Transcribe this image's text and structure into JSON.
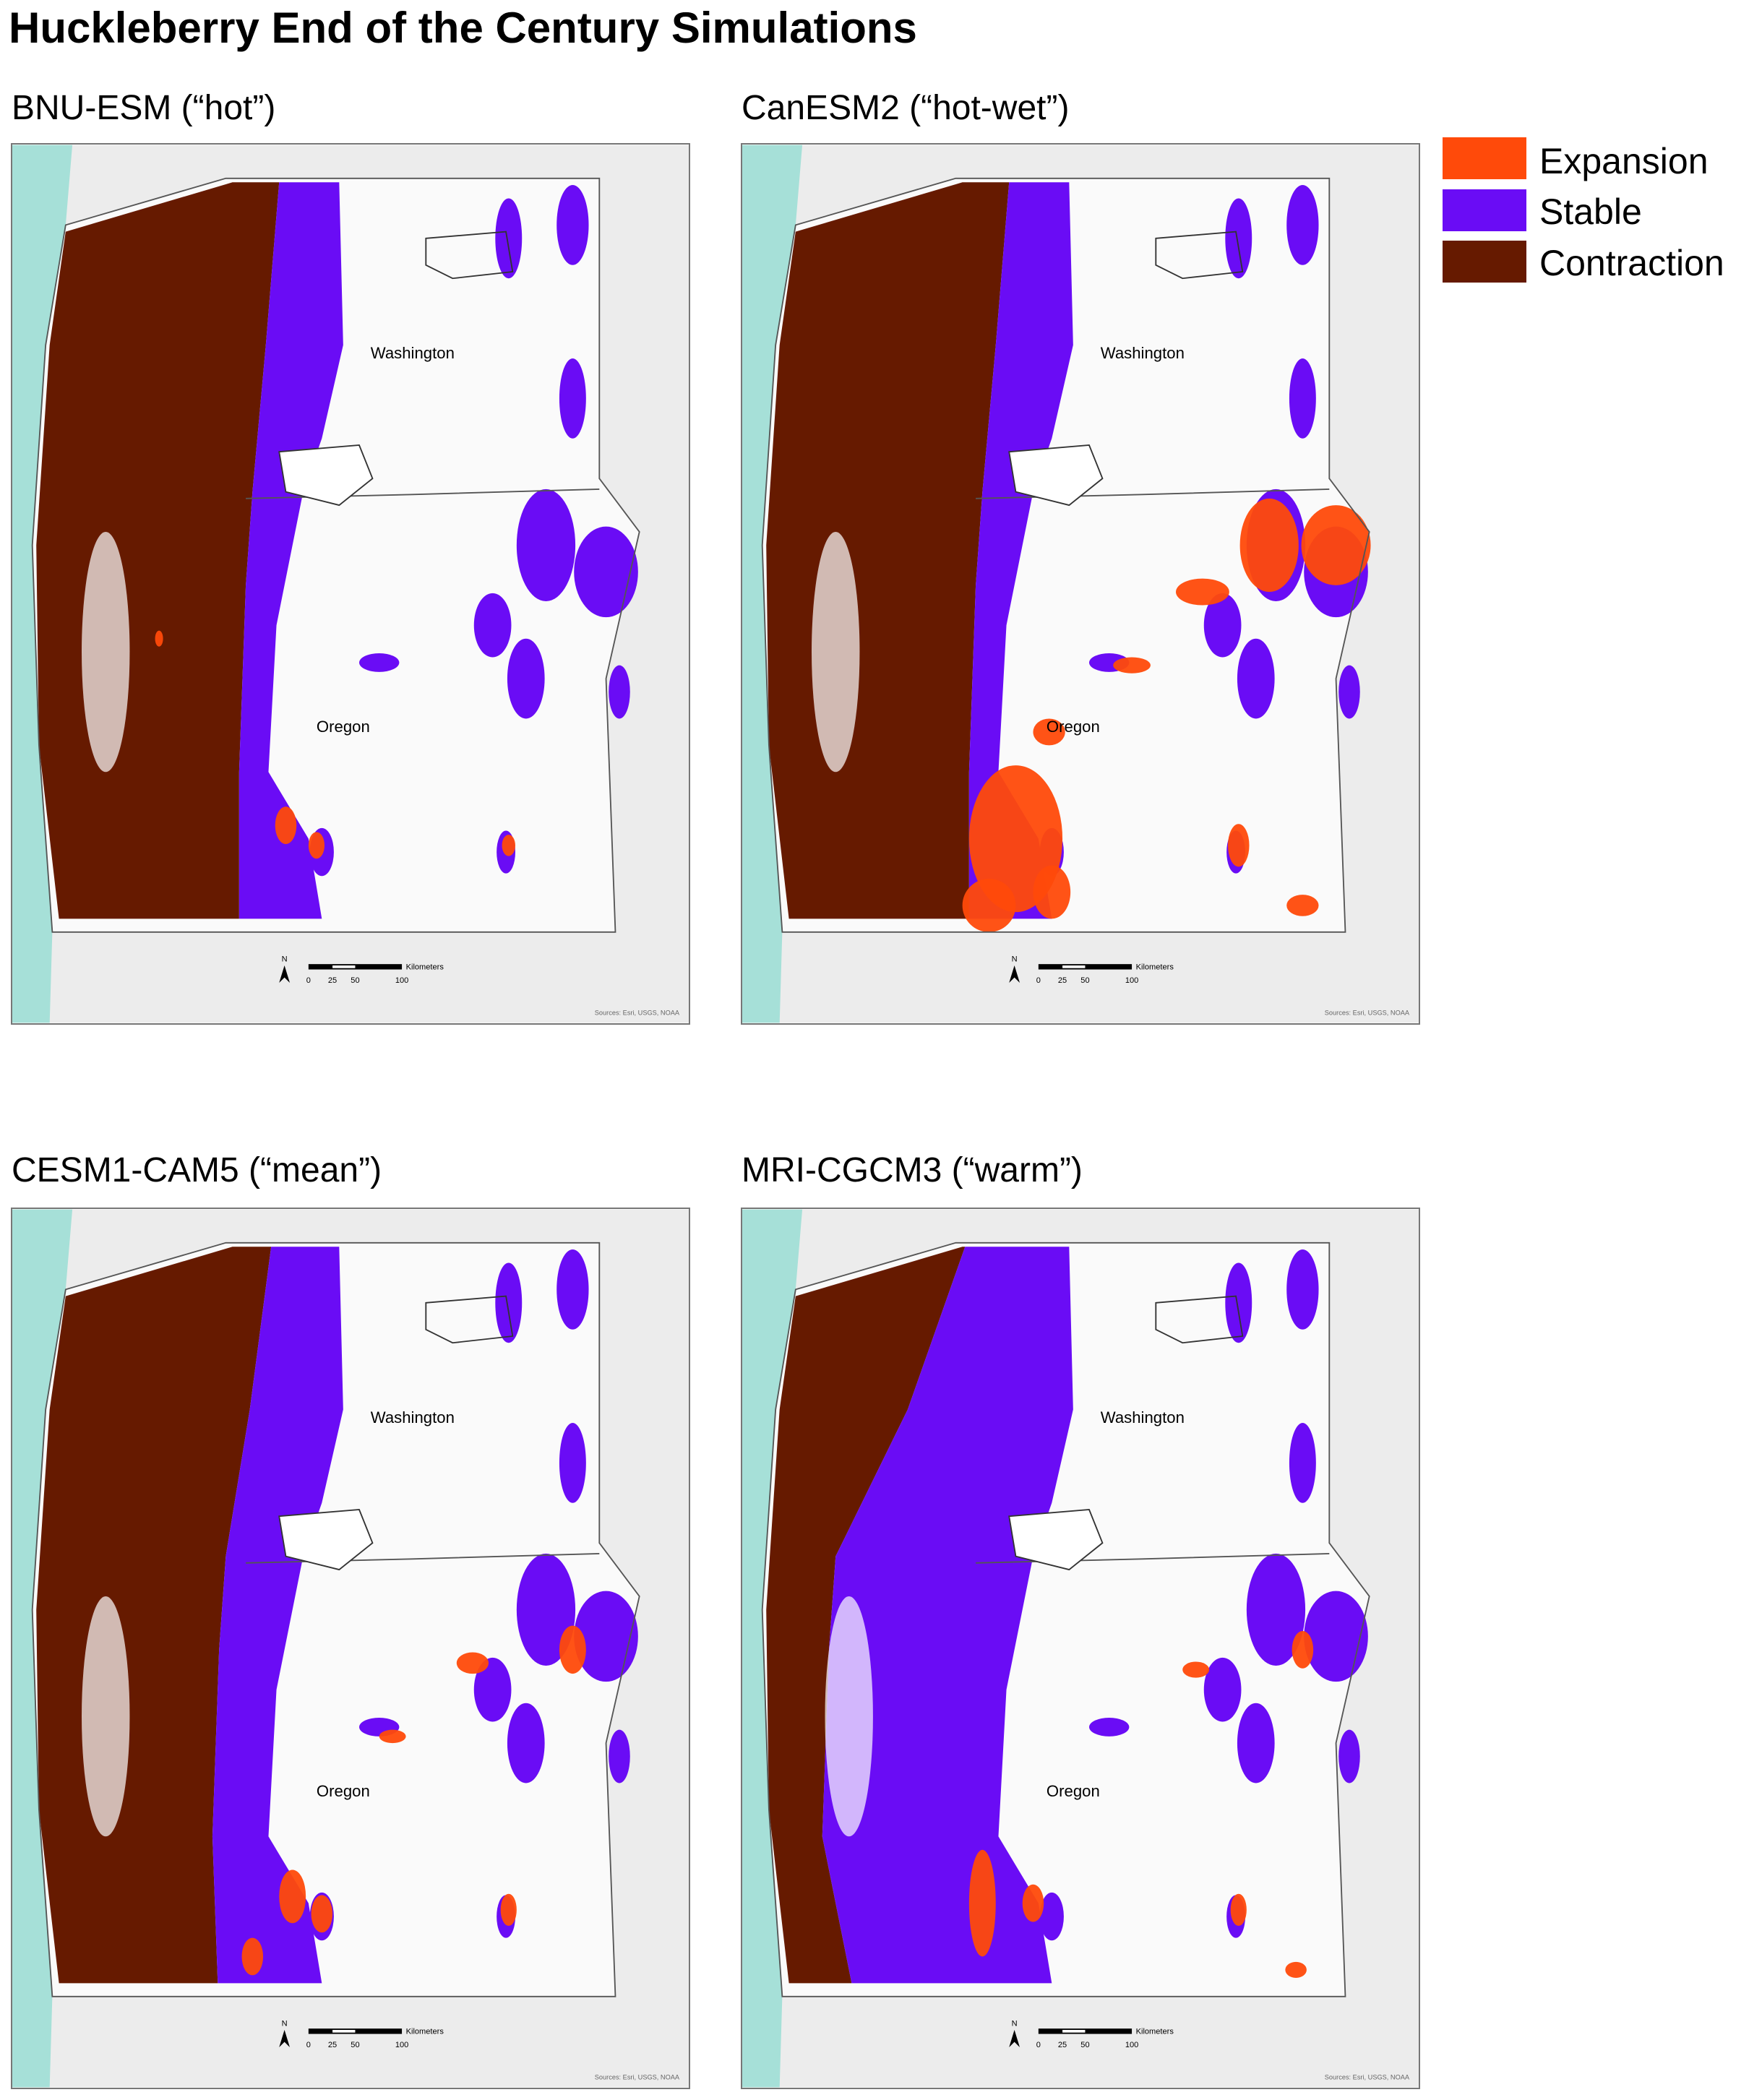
{
  "title": "Huckleberry End of the Century Simulations",
  "legend": [
    {
      "label": "Expansion",
      "color": "#ff4a0a"
    },
    {
      "label": "Stable",
      "color": "#6a0cf5"
    },
    {
      "label": "Contraction",
      "color": "#661a00"
    }
  ],
  "panels": [
    {
      "title": "BNU-ESM (“hot”)"
    },
    {
      "title": "CanESM2 (“hot-wet”)"
    },
    {
      "title": "CESM1-CAM5 (“mean”)"
    },
    {
      "title": "MRI-CGCM3 (“warm”)"
    }
  ],
  "map_labels": {
    "washington": "Washington",
    "oregon": "Oregon",
    "north": "N",
    "scale_unit": "Kilometers",
    "scale_ticks": [
      0,
      25,
      50,
      100
    ],
    "sources": "Sources: Esri, USGS, NOAA"
  }
}
